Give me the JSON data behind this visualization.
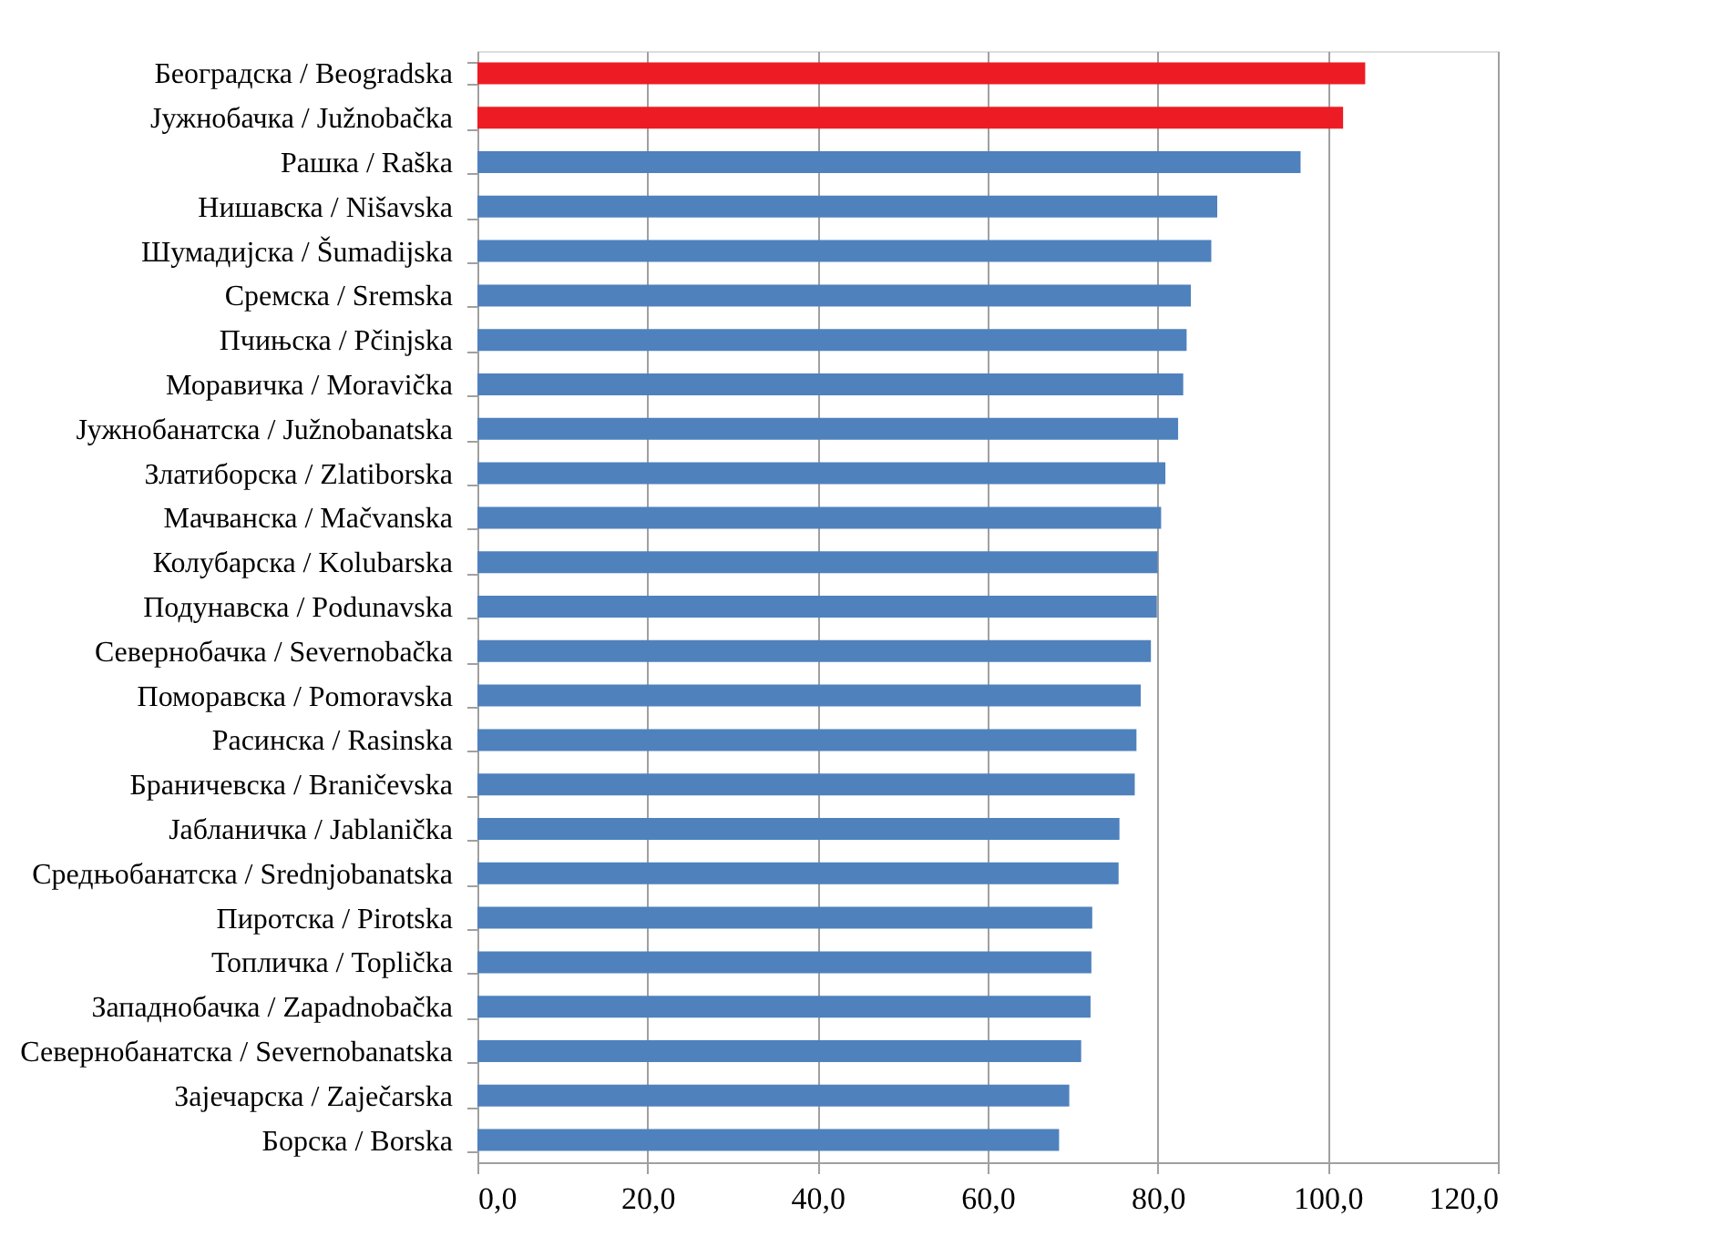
{
  "chart_data": {
    "type": "bar",
    "orientation": "horizontal",
    "categories": [
      "Београдска / Beogradska",
      "Јужнобачка / Južnobačka",
      "Рашка / Raška",
      "Нишавска / Nišavska",
      "Шумадијска / Šumadijska",
      "Сремска / Sremska",
      "Пчињска / Pčinjska",
      "Моравичка / Moravička",
      "Јужнобанатска / Južnobanatska",
      "Златиборска / Zlatiborska",
      "Мачванска / Mačvanska",
      "Колубарска / Kolubarska",
      "Подунавска / Podunavska",
      "Севернобачка / Severnobačka",
      "Поморавска / Pomoravska",
      "Расинска / Rasinska",
      "Браничевска / Braničevska",
      "Јабланичка / Jablanička",
      "Средњобанатска / Srednjobanatska",
      "Пиротска / Pirotska",
      "Топличка / Toplička",
      "Западнобачка / Zapadnobačka",
      "Севернобанатска / Severnobanatska",
      "Зајечарска / Zaječarska",
      "Борска / Borska"
    ],
    "values": [
      104.4,
      101.8,
      96.8,
      87.0,
      86.3,
      83.9,
      83.4,
      83.0,
      82.4,
      80.9,
      80.4,
      80.0,
      79.9,
      79.2,
      78.0,
      77.5,
      77.3,
      75.5,
      75.4,
      72.3,
      72.2,
      72.1,
      71.0,
      69.6,
      68.4
    ],
    "colors": [
      "#ed1c24",
      "#ed1c24",
      "#4f81bd",
      "#4f81bd",
      "#4f81bd",
      "#4f81bd",
      "#4f81bd",
      "#4f81bd",
      "#4f81bd",
      "#4f81bd",
      "#4f81bd",
      "#4f81bd",
      "#4f81bd",
      "#4f81bd",
      "#4f81bd",
      "#4f81bd",
      "#4f81bd",
      "#4f81bd",
      "#4f81bd",
      "#4f81bd",
      "#4f81bd",
      "#4f81bd",
      "#4f81bd",
      "#4f81bd",
      "#4f81bd"
    ],
    "xlim": [
      0,
      120
    ],
    "xticks": [
      {
        "value": 0,
        "label": "0,0"
      },
      {
        "value": 20,
        "label": "20,0"
      },
      {
        "value": 40,
        "label": "40,0"
      },
      {
        "value": 60,
        "label": "60,0"
      },
      {
        "value": 80,
        "label": "80,0"
      },
      {
        "value": 100,
        "label": "100,0"
      },
      {
        "value": 120,
        "label": "120,0"
      }
    ],
    "grid": "x",
    "legend": false
  }
}
